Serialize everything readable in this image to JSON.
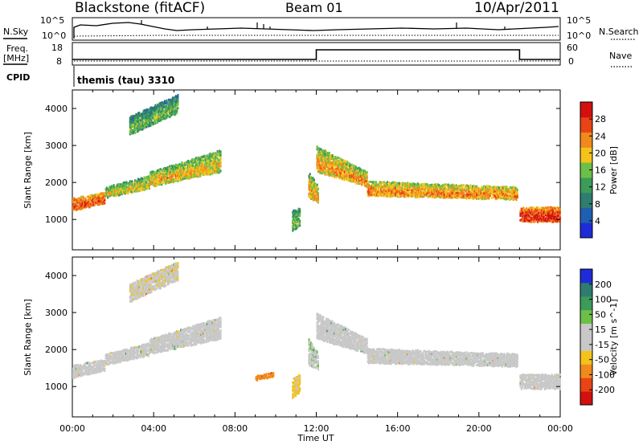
{
  "header": {
    "station": "Blackstone (fitACF)",
    "beam": "Beam 01",
    "date": "10/Apr/2011"
  },
  "top_panels": {
    "nsky_label": "N.Sky",
    "nsearch_label": "N.Search",
    "left_ticks": [
      "10^5",
      "10^0"
    ],
    "right_ticks": [
      "10^5",
      "10^0"
    ],
    "freq_label": "Freq.",
    "freq_unit": "[MHz]",
    "freq_ticks": [
      "18",
      "8"
    ],
    "nave_label": "Nave",
    "nave_ticks": [
      "60",
      "0"
    ],
    "cpid_label": "CPID",
    "cpid_value": "themis (tau) 3310"
  },
  "chart_data": [
    {
      "type": "heatmap",
      "name": "power",
      "ylabel": "Slant Range [km]",
      "ylim": [
        180,
        4500
      ],
      "yticks": [
        1000,
        2000,
        3000,
        4000
      ],
      "xlim": [
        0,
        24
      ],
      "colorbar": {
        "label": "Power [dB]",
        "ticks": [
          "28",
          "24",
          "20",
          "16",
          "12",
          "8",
          "4"
        ],
        "range": [
          0,
          30
        ],
        "colors": [
          "#1e2bd8",
          "#1f5fb0",
          "#2f7d6e",
          "#3c9b5a",
          "#6cc048",
          "#f4c21a",
          "#f08a1c",
          "#e84415",
          "#d21010"
        ]
      },
      "structures": [
        {
          "t0": 0.0,
          "t1": 1.6,
          "r0": 1250,
          "r1": 1600,
          "r0_end": 1450,
          "r1_end": 1750,
          "value": 20
        },
        {
          "t0": 1.6,
          "t1": 3.8,
          "r0": 1600,
          "r1": 1900,
          "r0_end": 1850,
          "r1_end": 2200,
          "value": 13
        },
        {
          "t0": 3.8,
          "t1": 7.3,
          "r0": 1900,
          "r1": 2300,
          "r0_end": 2300,
          "r1_end": 2900,
          "value": 14
        },
        {
          "t0": 2.8,
          "t1": 5.2,
          "r0": 3300,
          "r1": 3800,
          "r0_end": 3900,
          "r1_end": 4400,
          "value": 9
        },
        {
          "t0": 10.8,
          "t1": 11.2,
          "r0": 700,
          "r1": 1250,
          "r0_end": 850,
          "r1_end": 1350,
          "value": 10
        },
        {
          "t0": 11.6,
          "t1": 12.1,
          "r0": 1600,
          "r1": 2300,
          "r0_end": 1450,
          "r1_end": 1900,
          "value": 15
        },
        {
          "t0": 12.0,
          "t1": 14.5,
          "r0": 2300,
          "r1": 3000,
          "r0_end": 1900,
          "r1_end": 2300,
          "value": 16
        },
        {
          "t0": 14.5,
          "t1": 21.9,
          "r0": 1650,
          "r1": 2050,
          "r0_end": 1550,
          "r1_end": 1900,
          "value": 17
        },
        {
          "t0": 22.0,
          "t1": 24.0,
          "r0": 950,
          "r1": 1350,
          "r0_end": 950,
          "r1_end": 1350,
          "value": 22
        }
      ]
    },
    {
      "type": "heatmap",
      "name": "velocity",
      "ylabel": "Slant Range [km]",
      "xlabel": "Time UT",
      "ylim": [
        180,
        4500
      ],
      "yticks": [
        1000,
        2000,
        3000,
        4000
      ],
      "xlim": [
        0,
        24
      ],
      "xticks": [
        "00:00",
        "04:00",
        "08:00",
        "12:00",
        "16:00",
        "20:00",
        "00:00"
      ],
      "colorbar": {
        "label": "Velocity [m s^-1]",
        "ticks": [
          "200",
          "100",
          "50",
          "15",
          "-15",
          "-50",
          "-100",
          "-200"
        ],
        "range": [
          -250,
          250
        ],
        "colors": [
          "#d21010",
          "#e84415",
          "#f08a1c",
          "#f4c21a",
          "#c8c8c8",
          "#c8c8c8",
          "#6cc048",
          "#3c9b5a",
          "#2f7d6e",
          "#1e2bd8"
        ]
      },
      "structures": [
        {
          "t0": 0.0,
          "t1": 1.6,
          "r0": 1250,
          "r1": 1600,
          "r0_end": 1450,
          "r1_end": 1750,
          "value": 0
        },
        {
          "t0": 1.6,
          "t1": 3.8,
          "r0": 1600,
          "r1": 1900,
          "r0_end": 1850,
          "r1_end": 2200,
          "value": 0
        },
        {
          "t0": 3.8,
          "t1": 7.3,
          "r0": 1900,
          "r1": 2300,
          "r0_end": 2300,
          "r1_end": 2900,
          "value": 0
        },
        {
          "t0": 2.8,
          "t1": 5.2,
          "r0": 3300,
          "r1": 3800,
          "r0_end": 3900,
          "r1_end": 4400,
          "value": -40
        },
        {
          "t0": 9.0,
          "t1": 9.9,
          "r0": 1180,
          "r1": 1300,
          "r0_end": 1280,
          "r1_end": 1400,
          "value": -120
        },
        {
          "t0": 10.8,
          "t1": 11.2,
          "r0": 700,
          "r1": 1250,
          "r0_end": 850,
          "r1_end": 1350,
          "value": -60
        },
        {
          "t0": 11.6,
          "t1": 12.1,
          "r0": 1600,
          "r1": 2300,
          "r0_end": 1450,
          "r1_end": 1900,
          "value": 40
        },
        {
          "t0": 12.0,
          "t1": 14.5,
          "r0": 2300,
          "r1": 3000,
          "r0_end": 1900,
          "r1_end": 2300,
          "value": 0
        },
        {
          "t0": 14.5,
          "t1": 21.9,
          "r0": 1650,
          "r1": 2050,
          "r0_end": 1550,
          "r1_end": 1900,
          "value": 0
        },
        {
          "t0": 22.0,
          "t1": 24.0,
          "r0": 950,
          "r1": 1350,
          "r0_end": 950,
          "r1_end": 1350,
          "value": 0
        }
      ]
    },
    {
      "type": "line",
      "name": "search-frequency",
      "ylim": [
        8,
        18
      ],
      "points": [
        [
          0,
          10.5
        ],
        [
          12.0,
          10.5
        ],
        [
          12.0,
          14.8
        ],
        [
          22.0,
          14.8
        ],
        [
          22.0,
          10.5
        ],
        [
          24,
          10.5
        ]
      ]
    }
  ]
}
